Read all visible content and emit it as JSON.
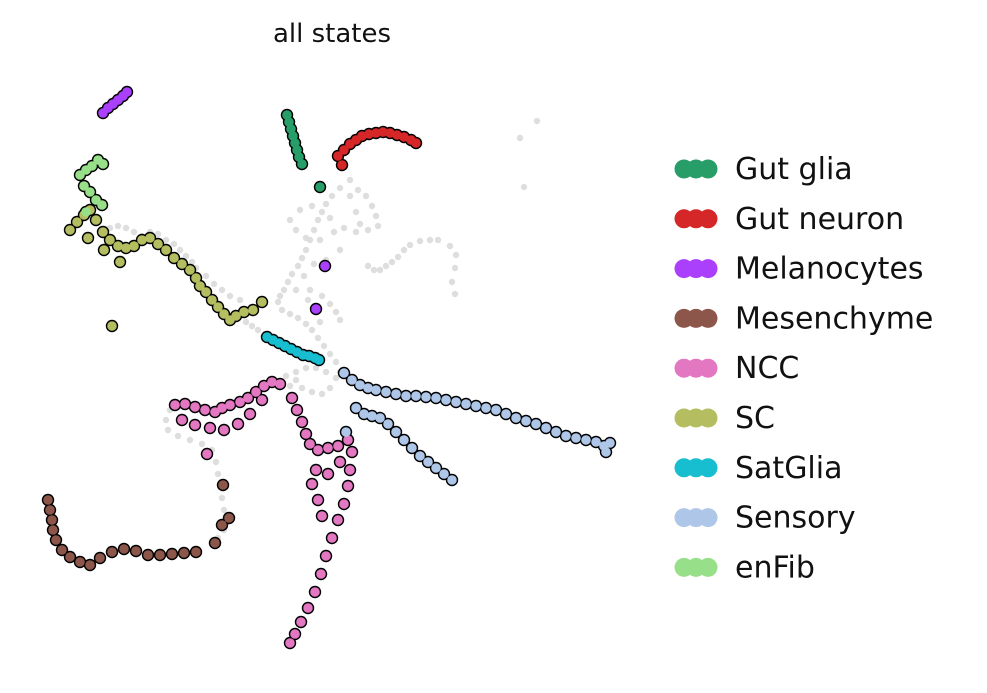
{
  "chart_data": {
    "type": "scatter",
    "title": "all states",
    "xlabel": "",
    "ylabel": "",
    "grid": false,
    "axes_visible": false,
    "legend_position": "right",
    "background_points_color": "#dedede",
    "point_outline_color": "#000000",
    "series": [
      {
        "name": "Gut glia",
        "color": "#279e68",
        "points": [
          [
            287,
            115
          ],
          [
            289,
            122
          ],
          [
            291,
            129
          ],
          [
            293,
            136
          ],
          [
            295,
            143
          ],
          [
            297,
            150
          ],
          [
            299,
            157
          ],
          [
            302,
            164
          ],
          [
            320,
            187
          ]
        ]
      },
      {
        "name": "Gut neuron",
        "color": "#d62728",
        "points": [
          [
            338,
            156
          ],
          [
            344,
            150
          ],
          [
            350,
            144
          ],
          [
            356,
            140
          ],
          [
            362,
            136
          ],
          [
            369,
            134
          ],
          [
            376,
            133
          ],
          [
            383,
            132
          ],
          [
            390,
            133
          ],
          [
            397,
            135
          ],
          [
            404,
            137
          ],
          [
            411,
            140
          ],
          [
            416,
            143
          ],
          [
            342,
            165
          ]
        ]
      },
      {
        "name": "Melanocytes",
        "color": "#aa40fc",
        "points": [
          [
            103,
            113
          ],
          [
            108,
            108
          ],
          [
            113,
            104
          ],
          [
            118,
            100
          ],
          [
            123,
            96
          ],
          [
            127,
            92
          ],
          [
            325,
            266
          ],
          [
            316,
            309
          ]
        ]
      },
      {
        "name": "Mesenchyme",
        "color": "#8c564b",
        "points": [
          [
            48,
            500
          ],
          [
            50,
            510
          ],
          [
            52,
            520
          ],
          [
            53,
            530
          ],
          [
            56,
            540
          ],
          [
            62,
            550
          ],
          [
            70,
            557
          ],
          [
            80,
            562
          ],
          [
            90,
            565
          ],
          [
            100,
            558
          ],
          [
            112,
            552
          ],
          [
            124,
            549
          ],
          [
            136,
            551
          ],
          [
            148,
            555
          ],
          [
            160,
            555
          ],
          [
            172,
            554
          ],
          [
            184,
            553
          ],
          [
            196,
            552
          ],
          [
            215,
            543
          ],
          [
            222,
            525
          ],
          [
            229,
            518
          ],
          [
            223,
            485
          ]
        ]
      },
      {
        "name": "NCC",
        "color": "#e377c2",
        "points": [
          [
            175,
            405
          ],
          [
            185,
            404
          ],
          [
            195,
            407
          ],
          [
            205,
            410
          ],
          [
            215,
            412
          ],
          [
            222,
            408
          ],
          [
            230,
            405
          ],
          [
            240,
            402
          ],
          [
            248,
            398
          ],
          [
            256,
            392
          ],
          [
            264,
            386
          ],
          [
            272,
            382
          ],
          [
            280,
            384
          ],
          [
            182,
            420
          ],
          [
            195,
            425
          ],
          [
            210,
            428
          ],
          [
            224,
            430
          ],
          [
            238,
            424
          ],
          [
            250,
            414
          ],
          [
            262,
            400
          ],
          [
            292,
            398
          ],
          [
            297,
            410
          ],
          [
            302,
            422
          ],
          [
            306,
            434
          ],
          [
            310,
            444
          ],
          [
            318,
            450
          ],
          [
            328,
            448
          ],
          [
            338,
            446
          ],
          [
            348,
            440
          ],
          [
            352,
            452
          ],
          [
            350,
            470
          ],
          [
            348,
            486
          ],
          [
            344,
            504
          ],
          [
            338,
            520
          ],
          [
            332,
            538
          ],
          [
            326,
            556
          ],
          [
            321,
            574
          ],
          [
            315,
            592
          ],
          [
            308,
            608
          ],
          [
            301,
            622
          ],
          [
            295,
            634
          ],
          [
            290,
            643
          ],
          [
            316,
            470
          ],
          [
            328,
            474
          ],
          [
            340,
            462
          ],
          [
            312,
            484
          ],
          [
            318,
            500
          ],
          [
            322,
            516
          ],
          [
            207,
            454
          ]
        ]
      },
      {
        "name": "SC",
        "color": "#b5bd61",
        "points": [
          [
            70,
            230
          ],
          [
            77,
            222
          ],
          [
            84,
            215
          ],
          [
            90,
            210
          ],
          [
            96,
            220
          ],
          [
            103,
            232
          ],
          [
            110,
            240
          ],
          [
            118,
            246
          ],
          [
            126,
            248
          ],
          [
            134,
            246
          ],
          [
            142,
            240
          ],
          [
            150,
            238
          ],
          [
            158,
            244
          ],
          [
            166,
            250
          ],
          [
            174,
            258
          ],
          [
            182,
            264
          ],
          [
            190,
            270
          ],
          [
            196,
            278
          ],
          [
            200,
            286
          ],
          [
            206,
            292
          ],
          [
            212,
            300
          ],
          [
            218,
            307
          ],
          [
            224,
            314
          ],
          [
            230,
            320
          ],
          [
            236,
            316
          ],
          [
            244,
            312
          ],
          [
            253,
            310
          ],
          [
            262,
            302
          ],
          [
            112,
            326
          ],
          [
            88,
            238
          ],
          [
            104,
            250
          ],
          [
            120,
            262
          ]
        ]
      },
      {
        "name": "SatGlia",
        "color": "#17becf",
        "points": [
          [
            267,
            337
          ],
          [
            273,
            340
          ],
          [
            279,
            343
          ],
          [
            285,
            346
          ],
          [
            291,
            349
          ],
          [
            297,
            352
          ],
          [
            303,
            355
          ],
          [
            309,
            356
          ],
          [
            315,
            358
          ],
          [
            319,
            360
          ]
        ]
      },
      {
        "name": "Sensory",
        "color": "#aec7e8",
        "points": [
          [
            344,
            373
          ],
          [
            352,
            380
          ],
          [
            360,
            385
          ],
          [
            368,
            388
          ],
          [
            376,
            390
          ],
          [
            386,
            392
          ],
          [
            396,
            394
          ],
          [
            406,
            396
          ],
          [
            416,
            396
          ],
          [
            426,
            397
          ],
          [
            436,
            398
          ],
          [
            446,
            400
          ],
          [
            456,
            402
          ],
          [
            466,
            404
          ],
          [
            476,
            406
          ],
          [
            486,
            408
          ],
          [
            496,
            410
          ],
          [
            506,
            414
          ],
          [
            516,
            418
          ],
          [
            526,
            421
          ],
          [
            536,
            424
          ],
          [
            546,
            428
          ],
          [
            556,
            432
          ],
          [
            566,
            436
          ],
          [
            576,
            438
          ],
          [
            586,
            440
          ],
          [
            596,
            442
          ],
          [
            604,
            446
          ],
          [
            610,
            443
          ],
          [
            606,
            452
          ],
          [
            356,
            408
          ],
          [
            364,
            414
          ],
          [
            372,
            416
          ],
          [
            380,
            418
          ],
          [
            388,
            424
          ],
          [
            396,
            432
          ],
          [
            404,
            440
          ],
          [
            412,
            448
          ],
          [
            420,
            456
          ],
          [
            428,
            462
          ],
          [
            436,
            468
          ],
          [
            444,
            474
          ],
          [
            452,
            480
          ],
          [
            346,
            432
          ]
        ]
      },
      {
        "name": "enFib",
        "color": "#98df8a",
        "points": [
          [
            80,
            175
          ],
          [
            86,
            170
          ],
          [
            92,
            166
          ],
          [
            98,
            160
          ],
          [
            103,
            164
          ],
          [
            84,
            186
          ],
          [
            90,
            192
          ],
          [
            96,
            200
          ],
          [
            102,
            205
          ],
          [
            86,
            212
          ]
        ]
      }
    ],
    "background_points": [
      [
        520,
        138
      ],
      [
        537,
        121
      ],
      [
        524,
        187
      ],
      [
        430,
        240
      ],
      [
        438,
        240
      ],
      [
        450,
        246
      ],
      [
        456,
        255
      ],
      [
        455,
        268
      ],
      [
        452,
        282
      ],
      [
        455,
        294
      ],
      [
        420,
        241
      ],
      [
        410,
        245
      ],
      [
        404,
        250
      ],
      [
        398,
        257
      ],
      [
        392,
        262
      ],
      [
        386,
        266
      ],
      [
        380,
        270
      ],
      [
        374,
        270
      ],
      [
        368,
        266
      ],
      [
        350,
        180
      ],
      [
        340,
        188
      ],
      [
        332,
        196
      ],
      [
        326,
        204
      ],
      [
        322,
        212
      ],
      [
        318,
        220
      ],
      [
        314,
        230
      ],
      [
        310,
        240
      ],
      [
        306,
        250
      ],
      [
        302,
        258
      ],
      [
        298,
        266
      ],
      [
        292,
        274
      ],
      [
        288,
        282
      ],
      [
        284,
        290
      ],
      [
        280,
        296
      ],
      [
        278,
        302
      ],
      [
        282,
        310
      ],
      [
        290,
        314
      ],
      [
        298,
        318
      ],
      [
        306,
        324
      ],
      [
        312,
        330
      ],
      [
        318,
        338
      ],
      [
        324,
        346
      ],
      [
        330,
        354
      ],
      [
        336,
        362
      ],
      [
        340,
        372
      ],
      [
        350,
        196
      ],
      [
        358,
        190
      ],
      [
        366,
        196
      ],
      [
        372,
        206
      ],
      [
        376,
        216
      ],
      [
        378,
        226
      ],
      [
        368,
        230
      ],
      [
        356,
        232
      ],
      [
        344,
        228
      ],
      [
        334,
        232
      ],
      [
        320,
        240
      ],
      [
        306,
        238
      ],
      [
        296,
        230
      ],
      [
        290,
        220
      ],
      [
        300,
        210
      ],
      [
        312,
        206
      ],
      [
        330,
        218
      ],
      [
        356,
        212
      ],
      [
        360,
        224
      ],
      [
        340,
        250
      ],
      [
        326,
        260
      ],
      [
        314,
        264
      ],
      [
        304,
        276
      ],
      [
        296,
        290
      ],
      [
        310,
        290
      ],
      [
        322,
        296
      ],
      [
        330,
        304
      ],
      [
        336,
        312
      ],
      [
        340,
        320
      ],
      [
        320,
        322
      ],
      [
        308,
        300
      ],
      [
        110,
        228
      ],
      [
        118,
        226
      ],
      [
        126,
        228
      ],
      [
        134,
        232
      ],
      [
        142,
        236
      ],
      [
        150,
        232
      ],
      [
        158,
        234
      ],
      [
        166,
        240
      ],
      [
        174,
        244
      ],
      [
        180,
        250
      ],
      [
        186,
        256
      ],
      [
        192,
        262
      ],
      [
        240,
        300
      ],
      [
        230,
        296
      ],
      [
        222,
        290
      ],
      [
        214,
        284
      ],
      [
        206,
        276
      ],
      [
        196,
        268
      ],
      [
        258,
        330
      ],
      [
        252,
        326
      ],
      [
        246,
        322
      ],
      [
        170,
        410
      ],
      [
        166,
        420
      ],
      [
        168,
        430
      ],
      [
        178,
        436
      ],
      [
        190,
        440
      ],
      [
        202,
        444
      ],
      [
        212,
        450
      ],
      [
        216,
        462
      ],
      [
        218,
        474
      ],
      [
        220,
        486
      ],
      [
        222,
        498
      ],
      [
        224,
        510
      ],
      [
        226,
        520
      ],
      [
        224,
        530
      ],
      [
        218,
        538
      ],
      [
        290,
        386
      ],
      [
        286,
        376
      ],
      [
        296,
        372
      ],
      [
        306,
        368
      ],
      [
        316,
        368
      ],
      [
        326,
        372
      ],
      [
        336,
        378
      ],
      [
        330,
        388
      ],
      [
        322,
        394
      ],
      [
        312,
        392
      ],
      [
        302,
        388
      ],
      [
        296,
        380
      ]
    ]
  }
}
